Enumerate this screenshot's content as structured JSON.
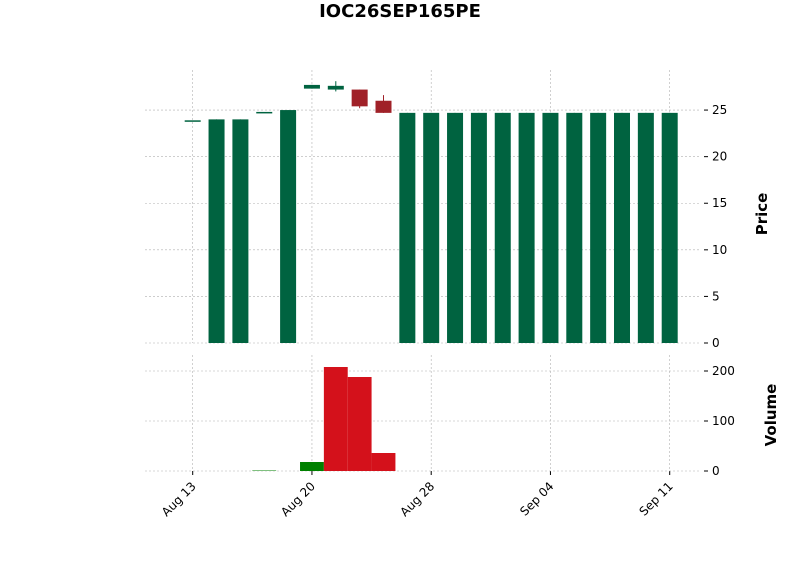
{
  "chart_data": {
    "type": "candlestick",
    "title": "IOC26SEP165PE",
    "categories": [
      "Aug 13",
      null,
      null,
      null,
      null,
      "Aug 20",
      null,
      null,
      null,
      null,
      "Aug 28",
      null,
      null,
      null,
      null,
      "Sep 04",
      null,
      null,
      null,
      null,
      "Sep 11"
    ],
    "open": [
      23.9,
      0,
      0,
      24.8,
      0,
      27.3,
      27.2,
      27.2,
      26.0,
      0,
      0,
      0,
      0,
      0,
      0,
      0,
      0,
      0,
      0,
      0,
      0
    ],
    "high": [
      23.9,
      24,
      24,
      24.8,
      25,
      27.7,
      28.1,
      27.2,
      26.6,
      24.7,
      24.7,
      24.7,
      24.7,
      24.7,
      24.7,
      24.7,
      24.7,
      24.7,
      24.7,
      24.7,
      24.7
    ],
    "low": [
      23.9,
      0,
      0,
      24.8,
      0,
      27.3,
      27.0,
      25.2,
      24.7,
      0,
      0,
      0,
      0,
      0,
      0,
      0,
      0,
      0,
      0,
      0,
      0
    ],
    "close": [
      23.9,
      24,
      24,
      24.8,
      25,
      27.7,
      27.6,
      25.4,
      24.7,
      24.7,
      24.7,
      24.7,
      24.7,
      24.7,
      24.7,
      24.7,
      24.7,
      24.7,
      24.7,
      24.7,
      24.7
    ],
    "up_color": "#006340",
    "down_color": "#a02128",
    "ylabel": "Price",
    "ylim": [
      0,
      29.3
    ],
    "yticks": [
      0,
      5,
      10,
      15,
      20,
      25
    ],
    "volume": {
      "label": "Volume",
      "values": [
        0,
        0,
        0,
        1,
        0,
        18,
        208,
        188,
        36,
        0,
        0,
        0,
        0,
        0,
        0,
        0,
        0,
        0,
        0,
        0,
        0
      ],
      "colors": [
        "#008000",
        "#008000",
        "#008000",
        "#008000",
        "#008000",
        "#008000",
        "#d4111b",
        "#d4111b",
        "#d4111b",
        "#008000",
        "#008000",
        "#008000",
        "#008000",
        "#008000",
        "#008000",
        "#008000",
        "#008000",
        "#008000",
        "#008000",
        "#008000",
        "#008000"
      ],
      "ylim": [
        0,
        232
      ],
      "yticks": [
        0,
        100,
        200
      ]
    },
    "grid": true
  }
}
